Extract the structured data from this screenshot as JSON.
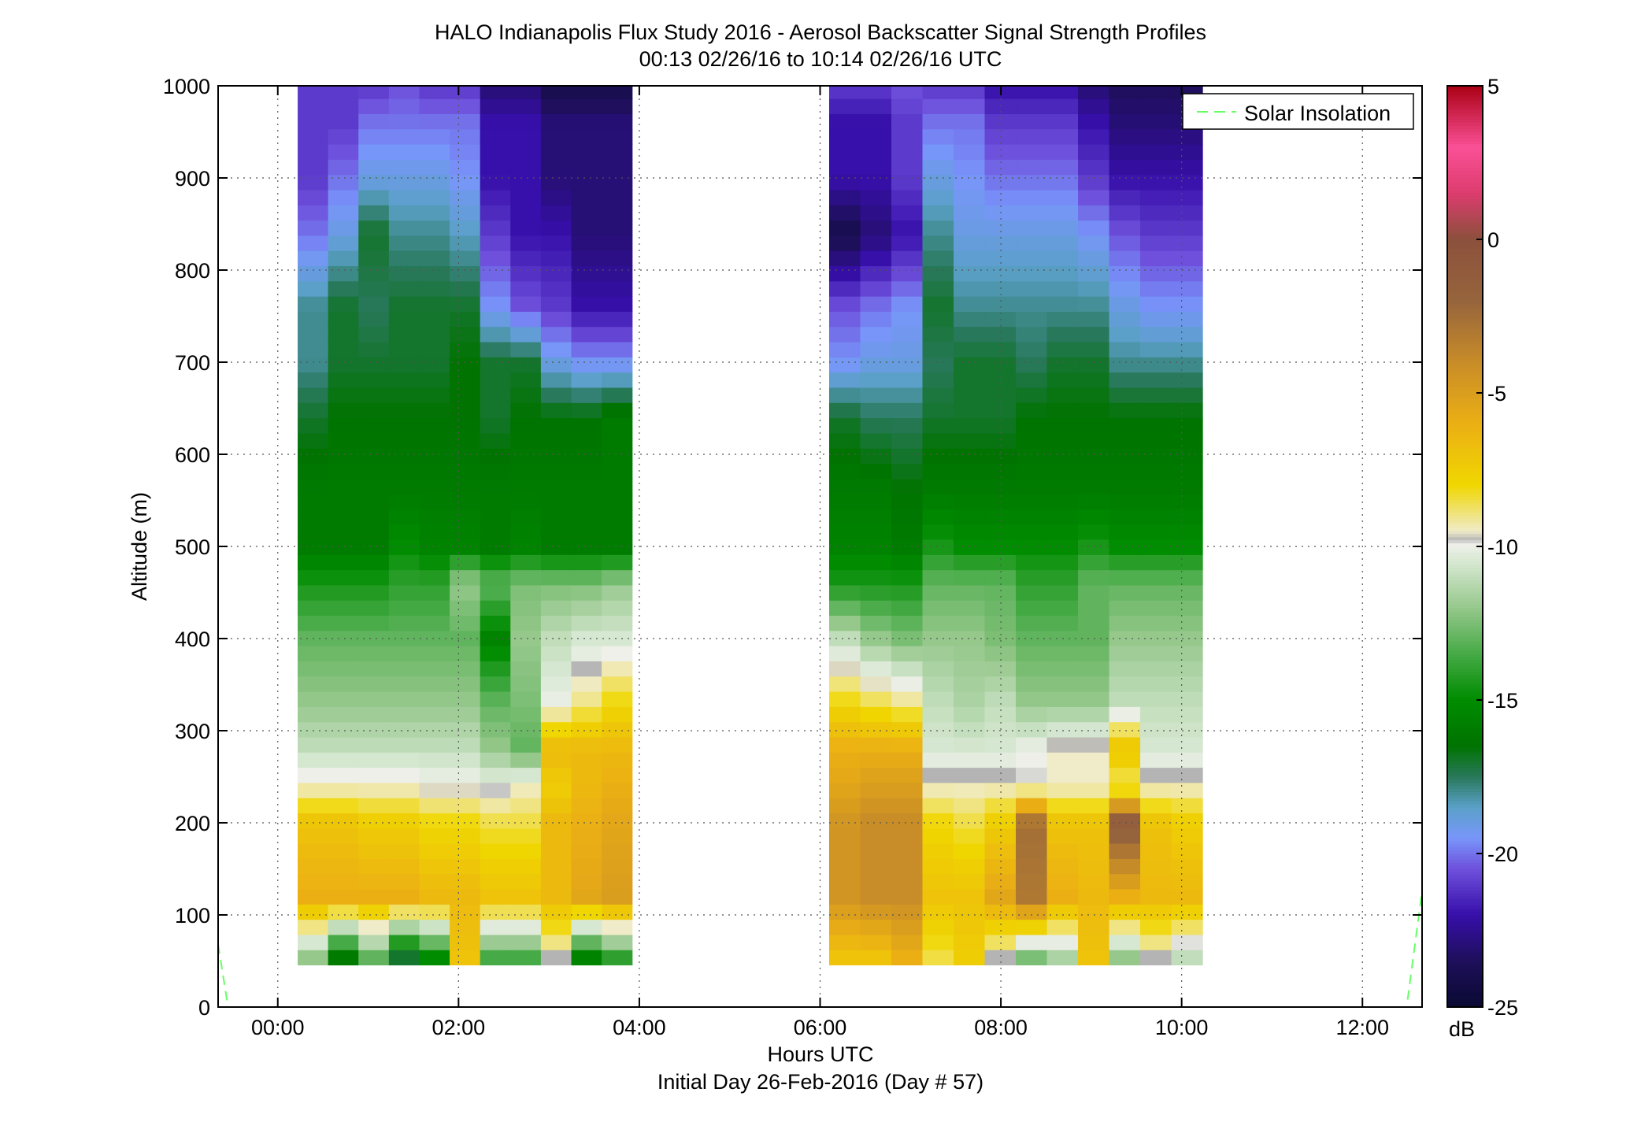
{
  "chart_data": {
    "type": "heatmap",
    "title": "HALO Indianapolis Flux Study 2016 - Aerosol Backscatter Signal Strength Profiles",
    "subtitle": "00:13 02/26/16 to 10:14 02/26/16  UTC",
    "xlabel": "Hours UTC",
    "xlabel2": "Initial Day 26-Feb-2016 (Day # 57)",
    "ylabel": "Altitude (m)",
    "colorbar_label": "dB",
    "xlim_hours": [
      -0.66,
      12.66
    ],
    "ylim": [
      0,
      1000
    ],
    "grid": "dotted",
    "legend_position": "top-right",
    "x_tick_labels": [
      "00:00",
      "02:00",
      "04:00",
      "06:00",
      "08:00",
      "10:00",
      "12:00"
    ],
    "x_ticks_hours": [
      0,
      2,
      4,
      6,
      8,
      10,
      12
    ],
    "y_ticks": [
      0,
      100,
      200,
      300,
      400,
      500,
      600,
      700,
      800,
      900,
      1000
    ],
    "y_tick_labels": [
      "0",
      "100",
      "200",
      "300",
      "400",
      "500",
      "600",
      "700",
      "800",
      "900",
      "1000"
    ],
    "colorbar_ticks": [
      5,
      0,
      -5,
      -10,
      -15,
      -20,
      -25
    ],
    "colorbar_tick_labels": [
      "5",
      "0",
      "-5",
      "-10",
      "-15",
      "-20",
      "-25"
    ],
    "colorbar_range": [
      -25,
      5
    ],
    "legend": [
      {
        "name": "Solar Insolation",
        "color": "#66ff66",
        "style": "dashed"
      }
    ],
    "segments": [
      {
        "start_hour": 0.22,
        "end_hour": 3.92,
        "columns": 11
      },
      {
        "start_hour": 6.1,
        "end_hour": 10.23,
        "columns": 12
      }
    ],
    "cell_height_m": 16.5,
    "lowest_cell_center_m": 54,
    "profiles_db": [
      {
        "segment": 0,
        "alt_m": [
          54,
          120,
          200,
          240,
          280,
          330,
          400,
          460,
          500,
          560,
          640,
          700,
          760,
          840,
          900,
          960,
          1000
        ],
        "columns": [
          [
            -12,
            -6,
            -7,
            -9.5,
            -11,
            -12,
            -13,
            -14.5,
            -16,
            -16,
            -17,
            -18,
            -18,
            -20,
            -21,
            -21,
            -21
          ],
          [
            -16,
            -6,
            -7,
            -9.5,
            -11,
            -12,
            -13,
            -14.5,
            -16,
            -16,
            -16.5,
            -17,
            -17,
            -19,
            -20,
            -21,
            -21
          ],
          [
            -13,
            -6,
            -7.5,
            -9.5,
            -11,
            -12,
            -13,
            -14.5,
            -16,
            -16,
            -16.5,
            -17,
            -17.5,
            -17,
            -19,
            -20,
            -21
          ],
          [
            -17,
            -6,
            -7.5,
            -9.5,
            -11,
            -12,
            -13,
            -14,
            -15,
            -16,
            -16.5,
            -17,
            -17,
            -18,
            -19,
            -20,
            -20.5
          ],
          [
            -15,
            -6.5,
            -8,
            -9.8,
            -11,
            -12,
            -13,
            -14,
            -15.5,
            -16,
            -16.5,
            -17,
            -17,
            -18,
            -19,
            -20,
            -21
          ],
          [
            -7,
            -6.5,
            -8,
            -9.8,
            -11,
            -12,
            -13,
            -12,
            -15.5,
            -16,
            -16.5,
            -16.5,
            -17,
            -18.5,
            -19.5,
            -20,
            -21
          ],
          [
            -13.5,
            -7,
            -8.5,
            -10,
            -12,
            -13,
            -15.5,
            -13,
            -16,
            -16,
            -17,
            -17,
            -19.5,
            -21,
            -22,
            -22,
            -23
          ],
          [
            -13.5,
            -7,
            -8.5,
            -9.5,
            -13,
            -12.5,
            -12,
            -12.5,
            -15.5,
            -16,
            -16.5,
            -17,
            -20.5,
            -22,
            -22,
            -22,
            -23
          ],
          [
            -9.8,
            -6.5,
            -6.5,
            -7.5,
            -6.5,
            -10,
            -11,
            -12.5,
            -16,
            -16,
            -16.5,
            -19,
            -21,
            -22,
            -23,
            -23,
            -24
          ],
          [
            -15.5,
            -5.5,
            -6,
            -6.5,
            -6.5,
            -9,
            -10.5,
            -12.5,
            -16,
            -16,
            -16.5,
            -19.5,
            -22,
            -23,
            -23,
            -23,
            -24
          ],
          [
            -14,
            -5,
            -5.5,
            -6,
            -6.5,
            -8,
            -10.5,
            -12,
            -16,
            -16,
            -16,
            -19.5,
            -22,
            -23,
            -23,
            -23,
            -24
          ]
        ]
      },
      {
        "segment": 1,
        "alt_m": [
          54,
          120,
          200,
          240,
          280,
          330,
          400,
          460,
          500,
          560,
          640,
          700,
          760,
          840,
          900,
          960,
          1000
        ],
        "columns": [
          [
            -7,
            -4.5,
            -4.5,
            -5.5,
            -6,
            -8,
            -11,
            -14.5,
            -15.5,
            -16,
            -17,
            -19.5,
            -20.5,
            -24,
            -22,
            -22,
            -21
          ],
          [
            -7,
            -4,
            -4,
            -5,
            -6,
            -8.5,
            -12,
            -14.5,
            -15.5,
            -16,
            -17.5,
            -19,
            -20,
            -23,
            -22,
            -22,
            -21
          ],
          [
            -6,
            -4,
            -4,
            -5,
            -6,
            -9,
            -12.5,
            -14.5,
            -16,
            -16.5,
            -17.5,
            -19,
            -19.5,
            -22,
            -21,
            -21,
            -20.5
          ],
          [
            -8.5,
            -7,
            -8,
            -9.5,
            -10.5,
            -11,
            -12,
            -13,
            -14.5,
            -16,
            -17,
            -17.5,
            -17,
            -18,
            -19,
            -20,
            -21
          ],
          [
            -7.5,
            -7,
            -8.5,
            -9.5,
            -10.5,
            -11.5,
            -12,
            -13,
            -15,
            -16,
            -17,
            -17,
            -18,
            -19,
            -19.5,
            -20,
            -21
          ],
          [
            -9.8,
            -5.5,
            -7.5,
            -9.5,
            -10.5,
            -11,
            -12.5,
            -13,
            -15,
            -16,
            -17,
            -17,
            -18,
            -19,
            -20,
            -21,
            -22
          ],
          [
            -12.5,
            -3,
            -2.5,
            -9.8,
            -10,
            -12,
            -13,
            -14,
            -15,
            -16,
            -16.5,
            -17.5,
            -18,
            -19,
            -20,
            -21,
            -22
          ],
          [
            -11.5,
            -6,
            -7,
            -9.5,
            -9.5,
            -12,
            -13,
            -14,
            -15,
            -16,
            -16.5,
            -17,
            -18,
            -19,
            -20,
            -21,
            -22
          ],
          [
            -7,
            -6.5,
            -7,
            -9.5,
            -9.5,
            -12,
            -13,
            -13,
            -14.5,
            -16,
            -16.5,
            -17,
            -18,
            -19.5,
            -21,
            -22,
            -23
          ],
          [
            -12,
            -6,
            -1,
            -9,
            -7,
            -11,
            -12,
            -13,
            -15,
            -16,
            -16.5,
            -18,
            -19,
            -20.5,
            -22,
            -23,
            -23.5
          ],
          [
            -9.8,
            -6.5,
            -7,
            -9.5,
            -10.5,
            -11,
            -12,
            -13,
            -15,
            -16,
            -16.5,
            -18,
            -19.5,
            -21,
            -22,
            -23,
            -23.5
          ],
          [
            -11,
            -6.5,
            -7.5,
            -9.5,
            -10.5,
            -11,
            -12,
            -13,
            -15,
            -16,
            -16.5,
            -18,
            -19.5,
            -21,
            -22,
            -23,
            -23.5
          ]
        ]
      }
    ]
  }
}
